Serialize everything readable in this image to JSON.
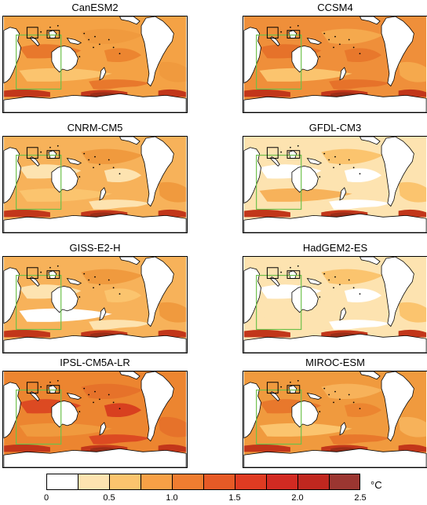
{
  "panels": [
    {
      "title": "CanESM2",
      "base": "#f4a245",
      "shades": [
        "#e8782c",
        "#f09a3e",
        "#fbc46e",
        "#ec8530"
      ]
    },
    {
      "title": "CCSM4",
      "base": "#ef8f3a",
      "shades": [
        "#e6722a",
        "#f5a94d",
        "#fbc46e",
        "#e8782c"
      ]
    },
    {
      "title": "CNRM-CM5",
      "base": "#f7b25a",
      "shades": [
        "#fde3b0",
        "#f09a3e",
        "#fbc46e",
        "#fde3b0"
      ]
    },
    {
      "title": "GFDL-CM3",
      "base": "#fde3b0",
      "shades": [
        "#ffffff",
        "#fbc46e",
        "#f7b25a",
        "#ffffff"
      ]
    },
    {
      "title": "GISS-E2-H",
      "base": "#f7b25a",
      "shades": [
        "#fde3b0",
        "#f09a3e",
        "#ffffff",
        "#fbc46e"
      ]
    },
    {
      "title": "HadGEM2-ES",
      "base": "#fde3b0",
      "shades": [
        "#ffffff",
        "#fbc46e",
        "#fde3b0",
        "#ffffff"
      ]
    },
    {
      "title": "IPSL-CM5A-LR",
      "base": "#ec8530",
      "shades": [
        "#dc4a22",
        "#e6722a",
        "#f09a3e",
        "#d8401f"
      ]
    },
    {
      "title": "MIROC-ESM",
      "base": "#f09a3e",
      "shades": [
        "#e8782c",
        "#f7b25a",
        "#fbc46e",
        "#ec8530"
      ]
    }
  ],
  "colors": {
    "land": "#ffffff",
    "coast": "#000000",
    "southern_ocean": "#c2361a",
    "southern_ocean_dark": "#9b2d17",
    "box_green": "#6cc04a",
    "box_black": "#000000"
  },
  "legend": {
    "unit": "°C",
    "ticks": [
      "0",
      "0.5",
      "1.0",
      "1.5",
      "2.0",
      "2.5"
    ],
    "colors": [
      "#ffffff",
      "#fde3b0",
      "#fbc46e",
      "#f7a046",
      "#ef7d30",
      "#e65a26",
      "#df3b22",
      "#d22a22",
      "#c0271f",
      "#9b3631"
    ]
  }
}
